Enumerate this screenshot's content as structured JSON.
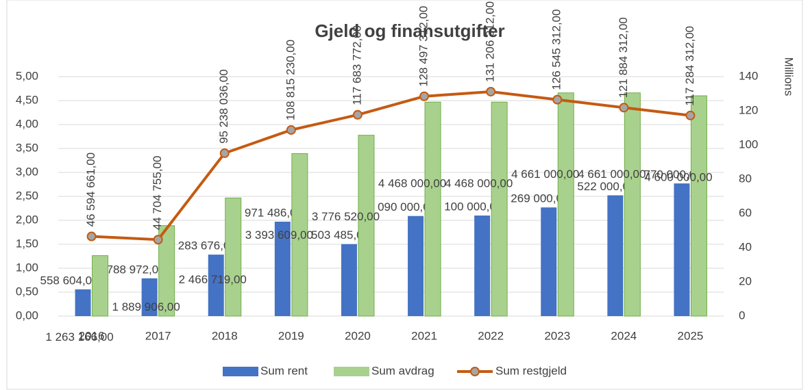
{
  "chart_data": {
    "type": "bar",
    "title": "Gjeld og finansutgifter",
    "categories": [
      "2016",
      "2017",
      "2018",
      "2019",
      "2020",
      "2021",
      "2022",
      "2023",
      "2024",
      "2025"
    ],
    "series": [
      {
        "name": "Sum rent",
        "color": "#4472c4",
        "values": [
          0.558604,
          0.788972,
          1.283676,
          1.971486,
          1.503485,
          2.09,
          2.1,
          2.269,
          2.522,
          2.77
        ],
        "value_labels": [
          "558 604,00",
          "788 972,00",
          "1 283 676,00",
          "1 971 486,00",
          "1 503 485,00",
          "2 090 000,00",
          "2 100 000,00",
          "2 269 000,00",
          "2 522 000,00",
          "2 770 000,00"
        ]
      },
      {
        "name": "Sum avdrag",
        "color": "#a9d18e",
        "values": [
          1.263166,
          1.889906,
          2.466719,
          3.393609,
          3.77652,
          4.468,
          4.468,
          4.661,
          4.661,
          4.6
        ],
        "value_labels": [
          "1 263 166,00",
          "1 889 906,00",
          "2 466 719,00",
          "3 393 609,00",
          "3 776 520,00",
          "4 468 000,00",
          "4 468 000,00",
          "4 661 000,00",
          "4 661 000,00",
          "4 600 000,00"
        ]
      },
      {
        "name": "Sum restgjeld",
        "color": "#c55a11",
        "type": "line",
        "axis": "y2",
        "values": [
          46.594661,
          44.704755,
          95.238036,
          108.81523,
          117.683772,
          128.497312,
          131.206312,
          126.545312,
          121.884312,
          117.284312
        ],
        "value_labels": [
          "46 594 661,00",
          "44 704 755,00",
          "95 238 036,00",
          "108 815 230,00",
          "117 683 772,00",
          "128 497 312,00",
          "131 206 312,00",
          "126 545 312,00",
          "121 884 312,00",
          "117 284 312,00"
        ]
      }
    ],
    "ylim": [
      0,
      5
    ],
    "yticks": [
      {
        "value": 0,
        "label": "0,00"
      },
      {
        "value": 0.5,
        "label": "0,50"
      },
      {
        "value": 1,
        "label": "1,00"
      },
      {
        "value": 1.5,
        "label": "1,50"
      },
      {
        "value": 2,
        "label": "2,00"
      },
      {
        "value": 2.5,
        "label": "2,50"
      },
      {
        "value": 3,
        "label": "3,00"
      },
      {
        "value": 3.5,
        "label": "3,50"
      },
      {
        "value": 4,
        "label": "4,00"
      },
      {
        "value": 4.5,
        "label": "4,50"
      },
      {
        "value": 5,
        "label": "5,00"
      }
    ],
    "y2lim": [
      0,
      140
    ],
    "y2ticks": [
      0,
      20,
      40,
      60,
      80,
      100,
      120,
      140
    ],
    "y2label": "Millions",
    "grid": true,
    "legend": "bottom"
  }
}
